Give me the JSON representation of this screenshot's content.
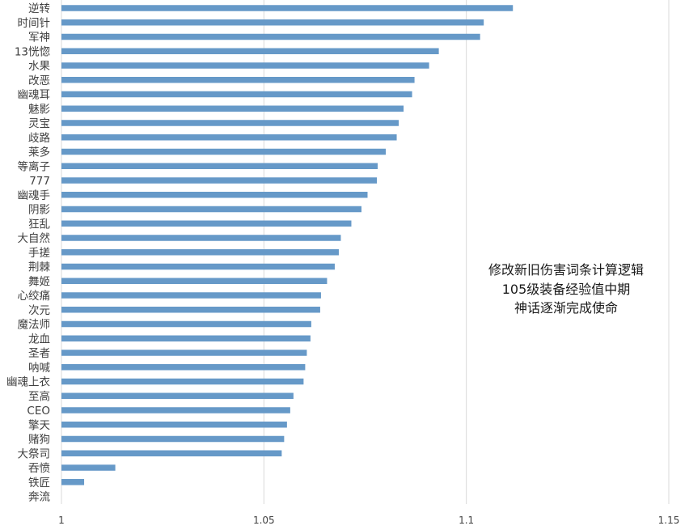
{
  "chart_data": {
    "type": "bar",
    "orientation": "horizontal",
    "categories": [
      "逆转",
      "时间针",
      "军神",
      "13恍惚",
      "水果",
      "改恶",
      "幽魂耳",
      "魅影",
      "灵宝",
      "歧路",
      "莱多",
      "等离子",
      "777",
      "幽魂手",
      "阴影",
      "狂乱",
      "大自然",
      "手搓",
      "荆棘",
      "舞姬",
      "心绞痛",
      "次元",
      "魔法师",
      "龙血",
      "圣者",
      "呐喊",
      "幽魂上衣",
      "至高",
      "CEO",
      "擎天",
      "赌狗",
      "大祭司",
      "吞愤",
      "铁匠",
      "奔流"
    ],
    "values": [
      1.1115,
      1.1043,
      1.1034,
      1.0932,
      1.0908,
      1.0872,
      1.0866,
      1.0845,
      1.0833,
      1.0828,
      1.0801,
      1.0781,
      1.0779,
      1.0756,
      1.0741,
      1.0716,
      1.069,
      1.0685,
      1.0675,
      1.0656,
      1.0641,
      1.0639,
      1.0617,
      1.0615,
      1.0606,
      1.0602,
      1.0598,
      1.0573,
      1.0565,
      1.0557,
      1.055,
      1.0544,
      1.0133,
      1.0056,
      1.0
    ],
    "xlim": [
      1,
      1.15
    ],
    "xticks": [
      "1",
      "1.05",
      "1.1",
      "1.15"
    ],
    "tick_values": [
      1,
      1.05,
      1.1,
      1.15
    ],
    "grid": true,
    "bar_color": "#6699c8",
    "title": "",
    "xlabel": "",
    "ylabel": "",
    "annotation": [
      "修改新旧伤害词条计算逻辑",
      "105级装备经验值中期",
      "神话逐渐完成使命"
    ]
  }
}
